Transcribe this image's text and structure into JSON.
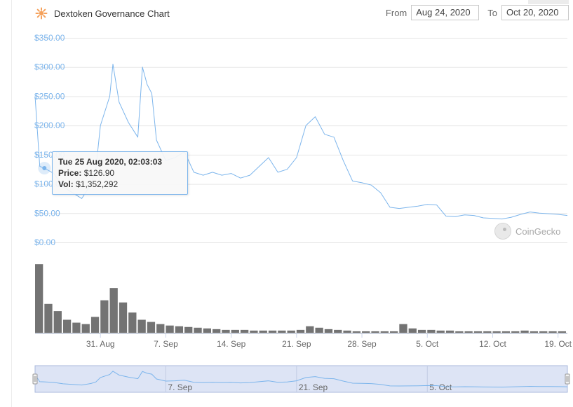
{
  "header": {
    "title": "Dextoken Governance Chart",
    "logo_icon": "dextoken-logo-icon",
    "from_label": "From",
    "from_value": "Aug 24, 2020",
    "to_label": "To",
    "to_value": "Oct 20, 2020"
  },
  "tooltip": {
    "date": "Tue 25 Aug 2020, 02:03:03",
    "price_label": "Price:",
    "price_value": "$126.90",
    "vol_label": "Vol:",
    "vol_value": "$1,352,292"
  },
  "watermark": "CoinGecko",
  "colors": {
    "price_line": "#7cb5ec",
    "volume_bar": "#737373",
    "navigator_mask": "#dde4f5",
    "navigator_border": "#aab9dc",
    "logo": "#f5a15b"
  },
  "chart_data": {
    "type": "line",
    "title": "Dextoken Governance Chart",
    "x_start": "2020-08-24",
    "x_end": "2020-10-20",
    "x_ticks": [
      {
        "date": "2020-08-31",
        "label": "31. Aug"
      },
      {
        "date": "2020-09-07",
        "label": "7. Sep"
      },
      {
        "date": "2020-09-14",
        "label": "14. Sep"
      },
      {
        "date": "2020-09-21",
        "label": "21. Sep"
      },
      {
        "date": "2020-09-28",
        "label": "28. Sep"
      },
      {
        "date": "2020-10-05",
        "label": "5. Oct"
      },
      {
        "date": "2020-10-12",
        "label": "12. Oct"
      },
      {
        "date": "2020-10-19",
        "label": "19. Oct"
      }
    ],
    "y_ticks": [
      {
        "value": 0,
        "label": "$0.00"
      },
      {
        "value": 50,
        "label": "$50.00"
      },
      {
        "value": 100,
        "label": "$100.00"
      },
      {
        "value": 150,
        "label": "$150.00"
      },
      {
        "value": 200,
        "label": "$200.00"
      },
      {
        "value": 250,
        "label": "$250.00"
      },
      {
        "value": 300,
        "label": "$300.00"
      },
      {
        "value": 350,
        "label": "$350.00"
      }
    ],
    "ylim": [
      0,
      350
    ],
    "grid": true,
    "navigator_labels": [
      {
        "date": "2020-09-07",
        "label": "7. Sep"
      },
      {
        "date": "2020-09-21",
        "label": "21. Sep"
      },
      {
        "date": "2020-10-05",
        "label": "5. Oct"
      }
    ],
    "series": [
      {
        "kind": "price",
        "points": [
          [
            "2020-08-24",
            250
          ],
          [
            "2020-08-24T12:00",
            130
          ],
          [
            "2020-08-25",
            127
          ],
          [
            "2020-08-26",
            118
          ],
          [
            "2020-08-27",
            95
          ],
          [
            "2020-08-28",
            85
          ],
          [
            "2020-08-29",
            75
          ],
          [
            "2020-08-30",
            100
          ],
          [
            "2020-08-30T12:00",
            125
          ],
          [
            "2020-08-31",
            200
          ],
          [
            "2020-09-01",
            250
          ],
          [
            "2020-09-01T08:00",
            305
          ],
          [
            "2020-09-02",
            240
          ],
          [
            "2020-09-03",
            205
          ],
          [
            "2020-09-04",
            180
          ],
          [
            "2020-09-04T12:00",
            300
          ],
          [
            "2020-09-05",
            270
          ],
          [
            "2020-09-05T12:00",
            255
          ],
          [
            "2020-09-06",
            175
          ],
          [
            "2020-09-07",
            140
          ],
          [
            "2020-09-08",
            145
          ],
          [
            "2020-09-09",
            155
          ],
          [
            "2020-09-10",
            120
          ],
          [
            "2020-09-11",
            115
          ],
          [
            "2020-09-12",
            120
          ],
          [
            "2020-09-13",
            115
          ],
          [
            "2020-09-14",
            118
          ],
          [
            "2020-09-15",
            110
          ],
          [
            "2020-09-16",
            115
          ],
          [
            "2020-09-17",
            130
          ],
          [
            "2020-09-18",
            145
          ],
          [
            "2020-09-19",
            120
          ],
          [
            "2020-09-20",
            125
          ],
          [
            "2020-09-21",
            145
          ],
          [
            "2020-09-22",
            200
          ],
          [
            "2020-09-23",
            215
          ],
          [
            "2020-09-24",
            185
          ],
          [
            "2020-09-25",
            180
          ],
          [
            "2020-09-26",
            140
          ],
          [
            "2020-09-27",
            105
          ],
          [
            "2020-09-28",
            102
          ],
          [
            "2020-09-29",
            98
          ],
          [
            "2020-09-30",
            85
          ],
          [
            "2020-10-01",
            60
          ],
          [
            "2020-10-02",
            58
          ],
          [
            "2020-10-03",
            60
          ],
          [
            "2020-10-04",
            62
          ],
          [
            "2020-10-05",
            65
          ],
          [
            "2020-10-06",
            64
          ],
          [
            "2020-10-07",
            45
          ],
          [
            "2020-10-08",
            44
          ],
          [
            "2020-10-09",
            47
          ],
          [
            "2020-10-10",
            46
          ],
          [
            "2020-10-11",
            42
          ],
          [
            "2020-10-12",
            41
          ],
          [
            "2020-10-13",
            40
          ],
          [
            "2020-10-14",
            43
          ],
          [
            "2020-10-15",
            48
          ],
          [
            "2020-10-16",
            52
          ],
          [
            "2020-10-17",
            50
          ],
          [
            "2020-10-18",
            49
          ],
          [
            "2020-10-19",
            48
          ],
          [
            "2020-10-20",
            46
          ]
        ]
      },
      {
        "kind": "volume",
        "bars": [
          [
            "2020-08-24",
            0.95
          ],
          [
            "2020-08-25",
            0.4
          ],
          [
            "2020-08-26",
            0.3
          ],
          [
            "2020-08-27",
            0.18
          ],
          [
            "2020-08-28",
            0.14
          ],
          [
            "2020-08-29",
            0.12
          ],
          [
            "2020-08-30",
            0.22
          ],
          [
            "2020-08-31",
            0.45
          ],
          [
            "2020-09-01",
            0.62
          ],
          [
            "2020-09-02",
            0.42
          ],
          [
            "2020-09-03",
            0.28
          ],
          [
            "2020-09-04",
            0.18
          ],
          [
            "2020-09-05",
            0.15
          ],
          [
            "2020-09-06",
            0.12
          ],
          [
            "2020-09-07",
            0.1
          ],
          [
            "2020-09-08",
            0.09
          ],
          [
            "2020-09-09",
            0.08
          ],
          [
            "2020-09-10",
            0.07
          ],
          [
            "2020-09-11",
            0.06
          ],
          [
            "2020-09-12",
            0.05
          ],
          [
            "2020-09-13",
            0.04
          ],
          [
            "2020-09-14",
            0.04
          ],
          [
            "2020-09-15",
            0.04
          ],
          [
            "2020-09-16",
            0.03
          ],
          [
            "2020-09-17",
            0.03
          ],
          [
            "2020-09-18",
            0.03
          ],
          [
            "2020-09-19",
            0.03
          ],
          [
            "2020-09-20",
            0.03
          ],
          [
            "2020-09-21",
            0.04
          ],
          [
            "2020-09-22",
            0.09
          ],
          [
            "2020-09-23",
            0.07
          ],
          [
            "2020-09-24",
            0.05
          ],
          [
            "2020-09-25",
            0.04
          ],
          [
            "2020-09-26",
            0.03
          ],
          [
            "2020-09-27",
            0.02
          ],
          [
            "2020-09-28",
            0.02
          ],
          [
            "2020-09-29",
            0.02
          ],
          [
            "2020-09-30",
            0.02
          ],
          [
            "2020-10-01",
            0.02
          ],
          [
            "2020-10-02",
            0.12
          ],
          [
            "2020-10-03",
            0.06
          ],
          [
            "2020-10-04",
            0.04
          ],
          [
            "2020-10-05",
            0.04
          ],
          [
            "2020-10-06",
            0.03
          ],
          [
            "2020-10-07",
            0.03
          ],
          [
            "2020-10-08",
            0.02
          ],
          [
            "2020-10-09",
            0.02
          ],
          [
            "2020-10-10",
            0.02
          ],
          [
            "2020-10-11",
            0.02
          ],
          [
            "2020-10-12",
            0.02
          ],
          [
            "2020-10-13",
            0.02
          ],
          [
            "2020-10-14",
            0.02
          ],
          [
            "2020-10-15",
            0.03
          ],
          [
            "2020-10-16",
            0.02
          ],
          [
            "2020-10-17",
            0.02
          ],
          [
            "2020-10-18",
            0.02
          ],
          [
            "2020-10-19",
            0.02
          ]
        ]
      }
    ]
  }
}
